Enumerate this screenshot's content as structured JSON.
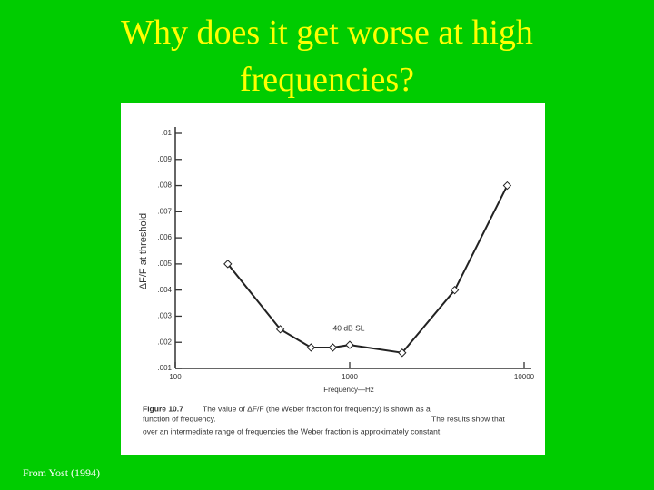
{
  "slide": {
    "title": "Why does it get worse at high frequencies?",
    "footer": "From Yost (1994)"
  },
  "chart_data": {
    "type": "line",
    "x_label": "Frequency—Hz",
    "y_label": "ΔF/F at threshold",
    "x": [
      200,
      400,
      600,
      800,
      1000,
      2000,
      4000,
      8000
    ],
    "series": [
      {
        "name": "40 dB SL",
        "color": "#222222",
        "values": [
          0.005,
          0.0025,
          0.0018,
          0.0018,
          0.0019,
          0.0016,
          0.004,
          0.008
        ]
      }
    ],
    "xlim": [
      100,
      10000
    ],
    "xticks": [
      100,
      1000,
      10000
    ],
    "xscale": "log",
    "ylim": [
      0.001,
      0.01
    ],
    "yticks": [
      {
        "value": 0.001,
        "label": ".001"
      },
      {
        "value": 0.002,
        "label": ".002"
      },
      {
        "value": 0.003,
        "label": ".003"
      },
      {
        "value": 0.004,
        "label": ".004"
      },
      {
        "value": 0.005,
        "label": ".005"
      },
      {
        "value": 0.006,
        "label": ".006"
      },
      {
        "value": 0.007,
        "label": ".007"
      },
      {
        "value": 0.008,
        "label": ".008"
      },
      {
        "value": 0.009,
        "label": ".009"
      },
      {
        "value": 0.01,
        "label": ".01"
      }
    ],
    "caption_label": "Figure 10.7",
    "caption_lines": [
      "The value of ΔF/F (the Weber fraction for frequency) is shown as a",
      "function of frequency.",
      "The results show that",
      "over an intermediate range of frequencies the Weber fraction is approximately constant."
    ]
  }
}
